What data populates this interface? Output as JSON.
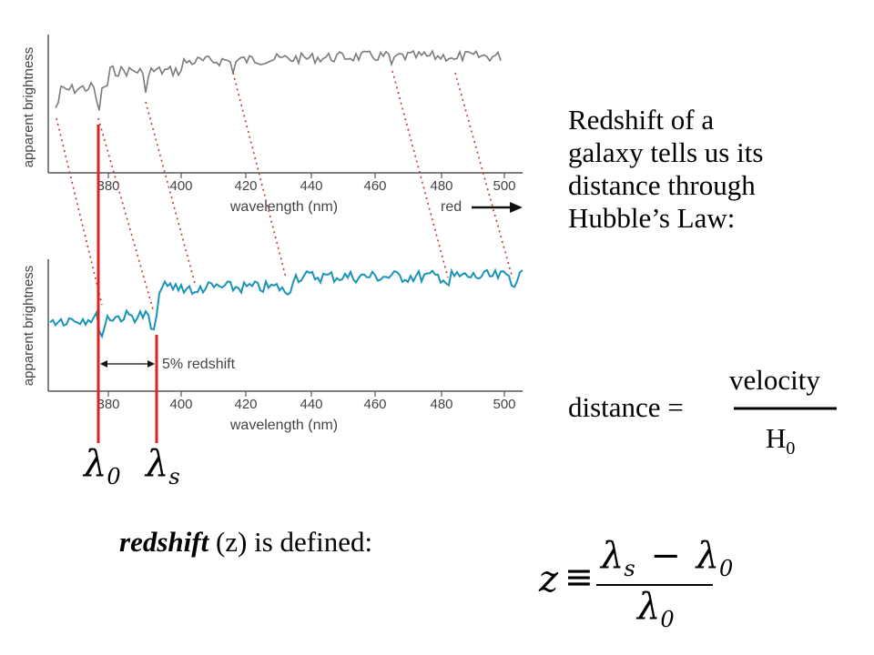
{
  "top_panel": {
    "ylabel": "apparent brightness",
    "xlabel": "wavelength (nm)",
    "ticks": [
      "380",
      "400",
      "420",
      "440",
      "460",
      "480",
      "500"
    ],
    "red_label": "red"
  },
  "bottom_panel": {
    "ylabel": "apparent brightness",
    "xlabel": "wavelength (nm)",
    "ticks": [
      "380",
      "400",
      "420",
      "440",
      "460",
      "480",
      "500"
    ],
    "shift_label": "5% redshift"
  },
  "lambda_labels": {
    "rest": "λ",
    "rest_sub": "0",
    "shifted": "λ",
    "shifted_sub": "s"
  },
  "description": "Redshift of a galaxy tells us its distance through Hubble’s Law:",
  "hubble_formula": {
    "lhs": "distance =",
    "numerator": "velocity",
    "denominator": "H",
    "denominator_sub": "0"
  },
  "redshift_def": {
    "term": "redshift",
    "rest": " (z) is defined:"
  },
  "z_formula": {
    "z": "z",
    "equiv": "≡",
    "num_a": "λ",
    "num_a_sub": "s",
    "minus": "−",
    "num_b": "λ",
    "num_b_sub": "0",
    "den": "λ",
    "den_sub": "0"
  },
  "colors": {
    "top_spectrum": "#7a7a7a",
    "bottom_spectrum": "#1a93b8",
    "marker": "#e02020",
    "dotted": "#c0392b"
  }
}
